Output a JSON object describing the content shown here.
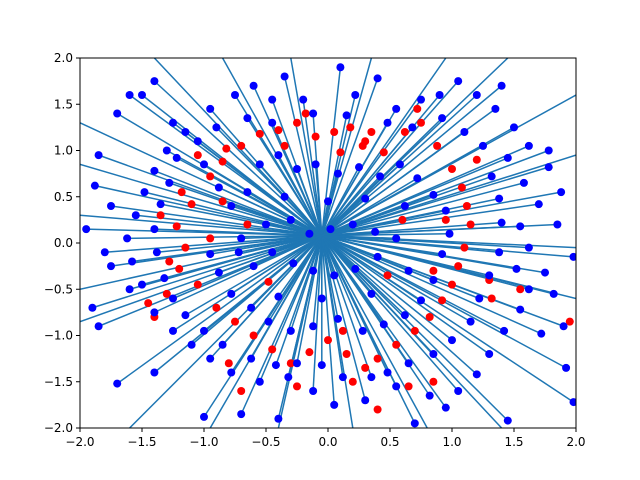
{
  "chart_data": {
    "type": "scatter",
    "title": "",
    "xlabel": "",
    "ylabel": "",
    "xlim": [
      -2.0,
      2.0
    ],
    "ylim": [
      -2.0,
      2.0
    ],
    "grid": false,
    "x_ticks": [
      "−2.0",
      "−1.5",
      "−1.0",
      "−0.5",
      "0.0",
      "0.5",
      "1.0",
      "1.5",
      "2.0"
    ],
    "y_ticks": [
      "−2.0",
      "−1.5",
      "−1.0",
      "−0.5",
      "0.0",
      "0.5",
      "1.0",
      "1.5",
      "2.0"
    ],
    "x_tick_values": [
      -2.0,
      -1.5,
      -1.0,
      -0.5,
      0.0,
      0.5,
      1.0,
      1.5,
      2.0
    ],
    "y_tick_values": [
      -2.0,
      -1.5,
      -1.0,
      -0.5,
      0.0,
      0.5,
      1.0,
      1.5,
      2.0
    ],
    "colors": {
      "line": "#1f77b4",
      "observed_points": "#ff0000",
      "predicted_points": "#0000ff"
    },
    "series": [
      {
        "role": "observed_points",
        "marker": "circle",
        "color": "#ff0000",
        "points": [
          [
            -1.18,
            0.55
          ],
          [
            -1.1,
            0.42
          ],
          [
            -1.22,
            0.18
          ],
          [
            -1.15,
            -0.05
          ],
          [
            -1.2,
            -0.28
          ],
          [
            -1.05,
            -0.45
          ],
          [
            -0.95,
            0.72
          ],
          [
            -0.85,
            0.88
          ],
          [
            -0.7,
            1.05
          ],
          [
            -0.55,
            1.18
          ],
          [
            -0.4,
            1.22
          ],
          [
            -0.25,
            1.3
          ],
          [
            -0.1,
            1.15
          ],
          [
            0.05,
            1.2
          ],
          [
            0.18,
            1.25
          ],
          [
            0.3,
            1.1
          ],
          [
            0.45,
            0.98
          ],
          [
            0.62,
            1.2
          ],
          [
            0.75,
            1.3
          ],
          [
            0.88,
            1.05
          ],
          [
            1.0,
            0.8
          ],
          [
            1.08,
            0.6
          ],
          [
            1.12,
            0.4
          ],
          [
            1.15,
            0.2
          ],
          [
            1.1,
            -0.05
          ],
          [
            1.05,
            -0.25
          ],
          [
            1.0,
            -0.45
          ],
          [
            0.92,
            -0.62
          ],
          [
            0.82,
            -0.8
          ],
          [
            0.7,
            -0.95
          ],
          [
            0.55,
            -1.1
          ],
          [
            0.4,
            -1.25
          ],
          [
            0.3,
            -1.35
          ],
          [
            0.15,
            -1.2
          ],
          [
            0.0,
            -1.05
          ],
          [
            -0.15,
            -1.18
          ],
          [
            -0.3,
            -1.3
          ],
          [
            -0.45,
            -1.15
          ],
          [
            -0.6,
            -1.0
          ],
          [
            -0.75,
            -0.85
          ],
          [
            -0.9,
            -0.7
          ],
          [
            -1.3,
            -0.55
          ],
          [
            -1.4,
            -0.8
          ],
          [
            -1.35,
            0.3
          ],
          [
            -0.8,
            -1.3
          ],
          [
            -0.7,
            -1.6
          ],
          [
            -0.25,
            -1.55
          ],
          [
            0.2,
            -1.5
          ],
          [
            0.4,
            -1.8
          ],
          [
            0.65,
            -1.55
          ],
          [
            0.85,
            -1.5
          ],
          [
            1.3,
            -0.4
          ],
          [
            1.32,
            -0.6
          ],
          [
            1.2,
            0.9
          ],
          [
            0.72,
            1.45
          ],
          [
            0.35,
            1.2
          ],
          [
            -0.18,
            1.4
          ],
          [
            -0.82,
            1.02
          ],
          [
            -1.05,
            0.95
          ],
          [
            -1.28,
            -0.2
          ],
          [
            -0.65,
            0.2
          ],
          [
            0.6,
            0.25
          ],
          [
            0.48,
            -0.35
          ],
          [
            -0.48,
            -0.42
          ],
          [
            0.95,
            0.25
          ],
          [
            -0.95,
            0.05
          ],
          [
            0.1,
            0.98
          ],
          [
            0.12,
            -0.95
          ],
          [
            0.85,
            -0.3
          ],
          [
            -0.85,
            0.45
          ],
          [
            1.95,
            -0.85
          ],
          [
            -1.45,
            -0.65
          ],
          [
            1.55,
            -0.5
          ],
          [
            0.28,
            1.05
          ],
          [
            -0.35,
            1.05
          ]
        ]
      },
      {
        "role": "predicted_points",
        "marker": "circle",
        "color": "#0000ff",
        "points": [
          [
            -1.75,
            0.4
          ],
          [
            -1.85,
            0.95
          ],
          [
            -1.6,
            1.6
          ],
          [
            -1.4,
            1.75
          ],
          [
            -0.6,
            1.7
          ],
          [
            -0.45,
            1.55
          ],
          [
            -0.2,
            1.55
          ],
          [
            0.1,
            1.9
          ],
          [
            0.4,
            1.78
          ],
          [
            0.9,
            1.6
          ],
          [
            1.05,
            1.75
          ],
          [
            1.4,
            1.7
          ],
          [
            1.78,
            0.82
          ],
          [
            1.88,
            0.55
          ],
          [
            1.85,
            0.2
          ],
          [
            1.98,
            -0.15
          ],
          [
            1.82,
            -0.55
          ],
          [
            1.9,
            -0.9
          ],
          [
            1.92,
            -1.35
          ],
          [
            1.98,
            -1.72
          ],
          [
            1.45,
            -1.92
          ],
          [
            0.95,
            -1.78
          ],
          [
            0.7,
            -1.95
          ],
          [
            0.3,
            -1.7
          ],
          [
            0.05,
            -1.75
          ],
          [
            -0.4,
            -1.9
          ],
          [
            -0.7,
            -1.85
          ],
          [
            -1.0,
            -1.88
          ],
          [
            -1.4,
            -1.4
          ],
          [
            -1.7,
            -1.52
          ],
          [
            -1.85,
            -0.9
          ],
          [
            -1.9,
            -0.7
          ],
          [
            -1.6,
            -0.5
          ],
          [
            -1.8,
            -0.1
          ],
          [
            -1.95,
            0.15
          ],
          [
            -1.7,
            1.4
          ],
          [
            -1.5,
            1.6
          ],
          [
            -1.25,
            1.3
          ],
          [
            -0.95,
            1.45
          ],
          [
            -0.75,
            1.6
          ],
          [
            -0.35,
            1.8
          ],
          [
            0.22,
            1.6
          ],
          [
            0.55,
            1.45
          ],
          [
            0.75,
            1.55
          ],
          [
            1.2,
            1.6
          ],
          [
            1.35,
            1.45
          ],
          [
            1.5,
            1.25
          ],
          [
            1.62,
            1.05
          ],
          [
            1.45,
            0.92
          ],
          [
            1.58,
            0.65
          ],
          [
            1.7,
            0.42
          ],
          [
            1.55,
            0.18
          ],
          [
            1.62,
            -0.05
          ],
          [
            1.52,
            -0.28
          ],
          [
            1.62,
            -0.5
          ],
          [
            1.55,
            -0.72
          ],
          [
            1.42,
            -0.95
          ],
          [
            1.3,
            -1.2
          ],
          [
            1.2,
            -1.42
          ],
          [
            1.05,
            -1.6
          ],
          [
            0.82,
            -1.65
          ],
          [
            0.55,
            -1.55
          ],
          [
            0.35,
            -1.45
          ],
          [
            0.12,
            -1.45
          ],
          [
            -0.12,
            -1.6
          ],
          [
            -0.32,
            -1.45
          ],
          [
            -0.55,
            -1.5
          ],
          [
            -0.78,
            -1.4
          ],
          [
            -0.95,
            -1.25
          ],
          [
            -1.1,
            -1.1
          ],
          [
            -1.25,
            -0.95
          ],
          [
            -1.4,
            -0.75
          ],
          [
            -1.5,
            -0.45
          ],
          [
            -1.58,
            -0.2
          ],
          [
            -1.62,
            0.05
          ],
          [
            -1.55,
            0.3
          ],
          [
            -1.48,
            0.55
          ],
          [
            -1.4,
            0.78
          ],
          [
            -1.3,
            1.0
          ],
          [
            -1.15,
            1.2
          ],
          [
            -1.0,
            0.85
          ],
          [
            -0.88,
            0.6
          ],
          [
            -0.78,
            0.4
          ],
          [
            -0.65,
            0.55
          ],
          [
            -0.55,
            0.85
          ],
          [
            -0.4,
            0.95
          ],
          [
            -0.25,
            0.8
          ],
          [
            -0.1,
            0.85
          ],
          [
            0.08,
            0.75
          ],
          [
            0.25,
            0.82
          ],
          [
            0.42,
            0.72
          ],
          [
            0.58,
            0.85
          ],
          [
            0.72,
            0.7
          ],
          [
            0.85,
            0.52
          ],
          [
            0.95,
            0.35
          ],
          [
            0.98,
            0.1
          ],
          [
            0.92,
            -0.12
          ],
          [
            0.85,
            -0.4
          ],
          [
            0.75,
            -0.62
          ],
          [
            0.62,
            -0.78
          ],
          [
            0.45,
            -0.88
          ],
          [
            0.28,
            -0.95
          ],
          [
            0.08,
            -0.82
          ],
          [
            -0.12,
            -0.9
          ],
          [
            -0.3,
            -0.95
          ],
          [
            -0.48,
            -0.85
          ],
          [
            -0.62,
            -0.7
          ],
          [
            -0.78,
            -0.55
          ],
          [
            -0.88,
            -0.32
          ],
          [
            -0.95,
            -0.12
          ],
          [
            -0.7,
            0.05
          ],
          [
            -0.5,
            0.2
          ],
          [
            -0.3,
            0.25
          ],
          [
            -0.15,
            0.1
          ],
          [
            0.02,
            0.15
          ],
          [
            0.2,
            0.2
          ],
          [
            0.38,
            0.12
          ],
          [
            0.55,
            0.05
          ],
          [
            0.4,
            -0.15
          ],
          [
            0.22,
            -0.28
          ],
          [
            0.05,
            -0.35
          ],
          [
            -0.12,
            -0.3
          ],
          [
            -0.28,
            -0.22
          ],
          [
            -0.45,
            -0.1
          ],
          [
            -0.6,
            -0.25
          ],
          [
            -0.35,
            0.5
          ],
          [
            0.0,
            0.45
          ],
          [
            0.3,
            0.48
          ],
          [
            0.62,
            0.4
          ],
          [
            0.65,
            -0.3
          ],
          [
            0.35,
            -0.55
          ],
          [
            -0.05,
            -0.6
          ],
          [
            -0.4,
            -0.58
          ],
          [
            -0.72,
            -0.1
          ],
          [
            -1.22,
            0.92
          ],
          [
            -1.05,
            1.1
          ],
          [
            -0.9,
            1.25
          ],
          [
            -0.65,
            1.35
          ],
          [
            -0.45,
            1.3
          ],
          [
            -0.12,
            1.4
          ],
          [
            0.15,
            1.38
          ],
          [
            0.48,
            1.3
          ],
          [
            0.68,
            1.25
          ],
          [
            0.92,
            1.35
          ],
          [
            1.1,
            1.2
          ],
          [
            1.25,
            1.05
          ],
          [
            1.32,
            0.72
          ],
          [
            1.38,
            0.48
          ],
          [
            1.4,
            0.22
          ],
          [
            1.38,
            -0.1
          ],
          [
            1.3,
            -0.35
          ],
          [
            1.22,
            -0.6
          ],
          [
            1.15,
            -0.85
          ],
          [
            1.0,
            -1.05
          ],
          [
            0.85,
            -1.2
          ],
          [
            0.65,
            -1.3
          ],
          [
            0.48,
            -1.4
          ],
          [
            -0.05,
            -1.32
          ],
          [
            -0.25,
            -1.3
          ],
          [
            -0.42,
            -1.32
          ],
          [
            -0.62,
            -1.25
          ],
          [
            -0.85,
            -1.1
          ],
          [
            -1.0,
            -0.95
          ],
          [
            -1.15,
            -0.78
          ],
          [
            -1.25,
            -0.6
          ],
          [
            -1.32,
            -0.38
          ],
          [
            -1.38,
            -0.1
          ],
          [
            -1.4,
            0.15
          ],
          [
            -1.35,
            0.42
          ],
          [
            -1.28,
            0.65
          ],
          [
            -1.75,
            -0.25
          ],
          [
            -1.88,
            0.62
          ],
          [
            1.78,
            1.0
          ],
          [
            1.75,
            -0.32
          ],
          [
            1.72,
            -0.98
          ]
        ]
      }
    ],
    "segments": [
      [
        -0.05,
        0.08,
        -2.0,
        1.3
      ],
      [
        -0.05,
        0.08,
        -2.0,
        0.3
      ],
      [
        -0.05,
        0.08,
        -2.0,
        -0.5
      ],
      [
        -0.05,
        0.08,
        -2.0,
        -0.85
      ],
      [
        -0.05,
        0.08,
        -1.4,
        2.0
      ],
      [
        -0.05,
        0.08,
        -0.85,
        2.0
      ],
      [
        -0.05,
        0.08,
        -0.3,
        2.0
      ],
      [
        -0.05,
        0.08,
        0.35,
        2.0
      ],
      [
        -0.05,
        0.08,
        0.95,
        2.0
      ],
      [
        -0.05,
        0.08,
        1.45,
        2.0
      ],
      [
        -0.05,
        0.08,
        2.0,
        -0.05
      ],
      [
        -0.05,
        0.08,
        2.0,
        -0.6
      ],
      [
        -0.05,
        0.08,
        1.4,
        -2.0
      ],
      [
        -0.05,
        0.08,
        0.8,
        -2.0
      ],
      [
        -0.05,
        0.08,
        0.2,
        -2.0
      ],
      [
        -0.05,
        0.08,
        -0.4,
        -2.0
      ],
      [
        -0.05,
        0.08,
        -0.95,
        -2.0
      ],
      [
        -0.05,
        0.08,
        -1.6,
        -2.0
      ],
      [
        -0.05,
        0.08,
        2.0,
        1.6
      ],
      [
        -0.05,
        0.08,
        2.0,
        0.95
      ],
      [
        -0.05,
        0.08,
        -2.0,
        0.85
      ]
    ]
  }
}
